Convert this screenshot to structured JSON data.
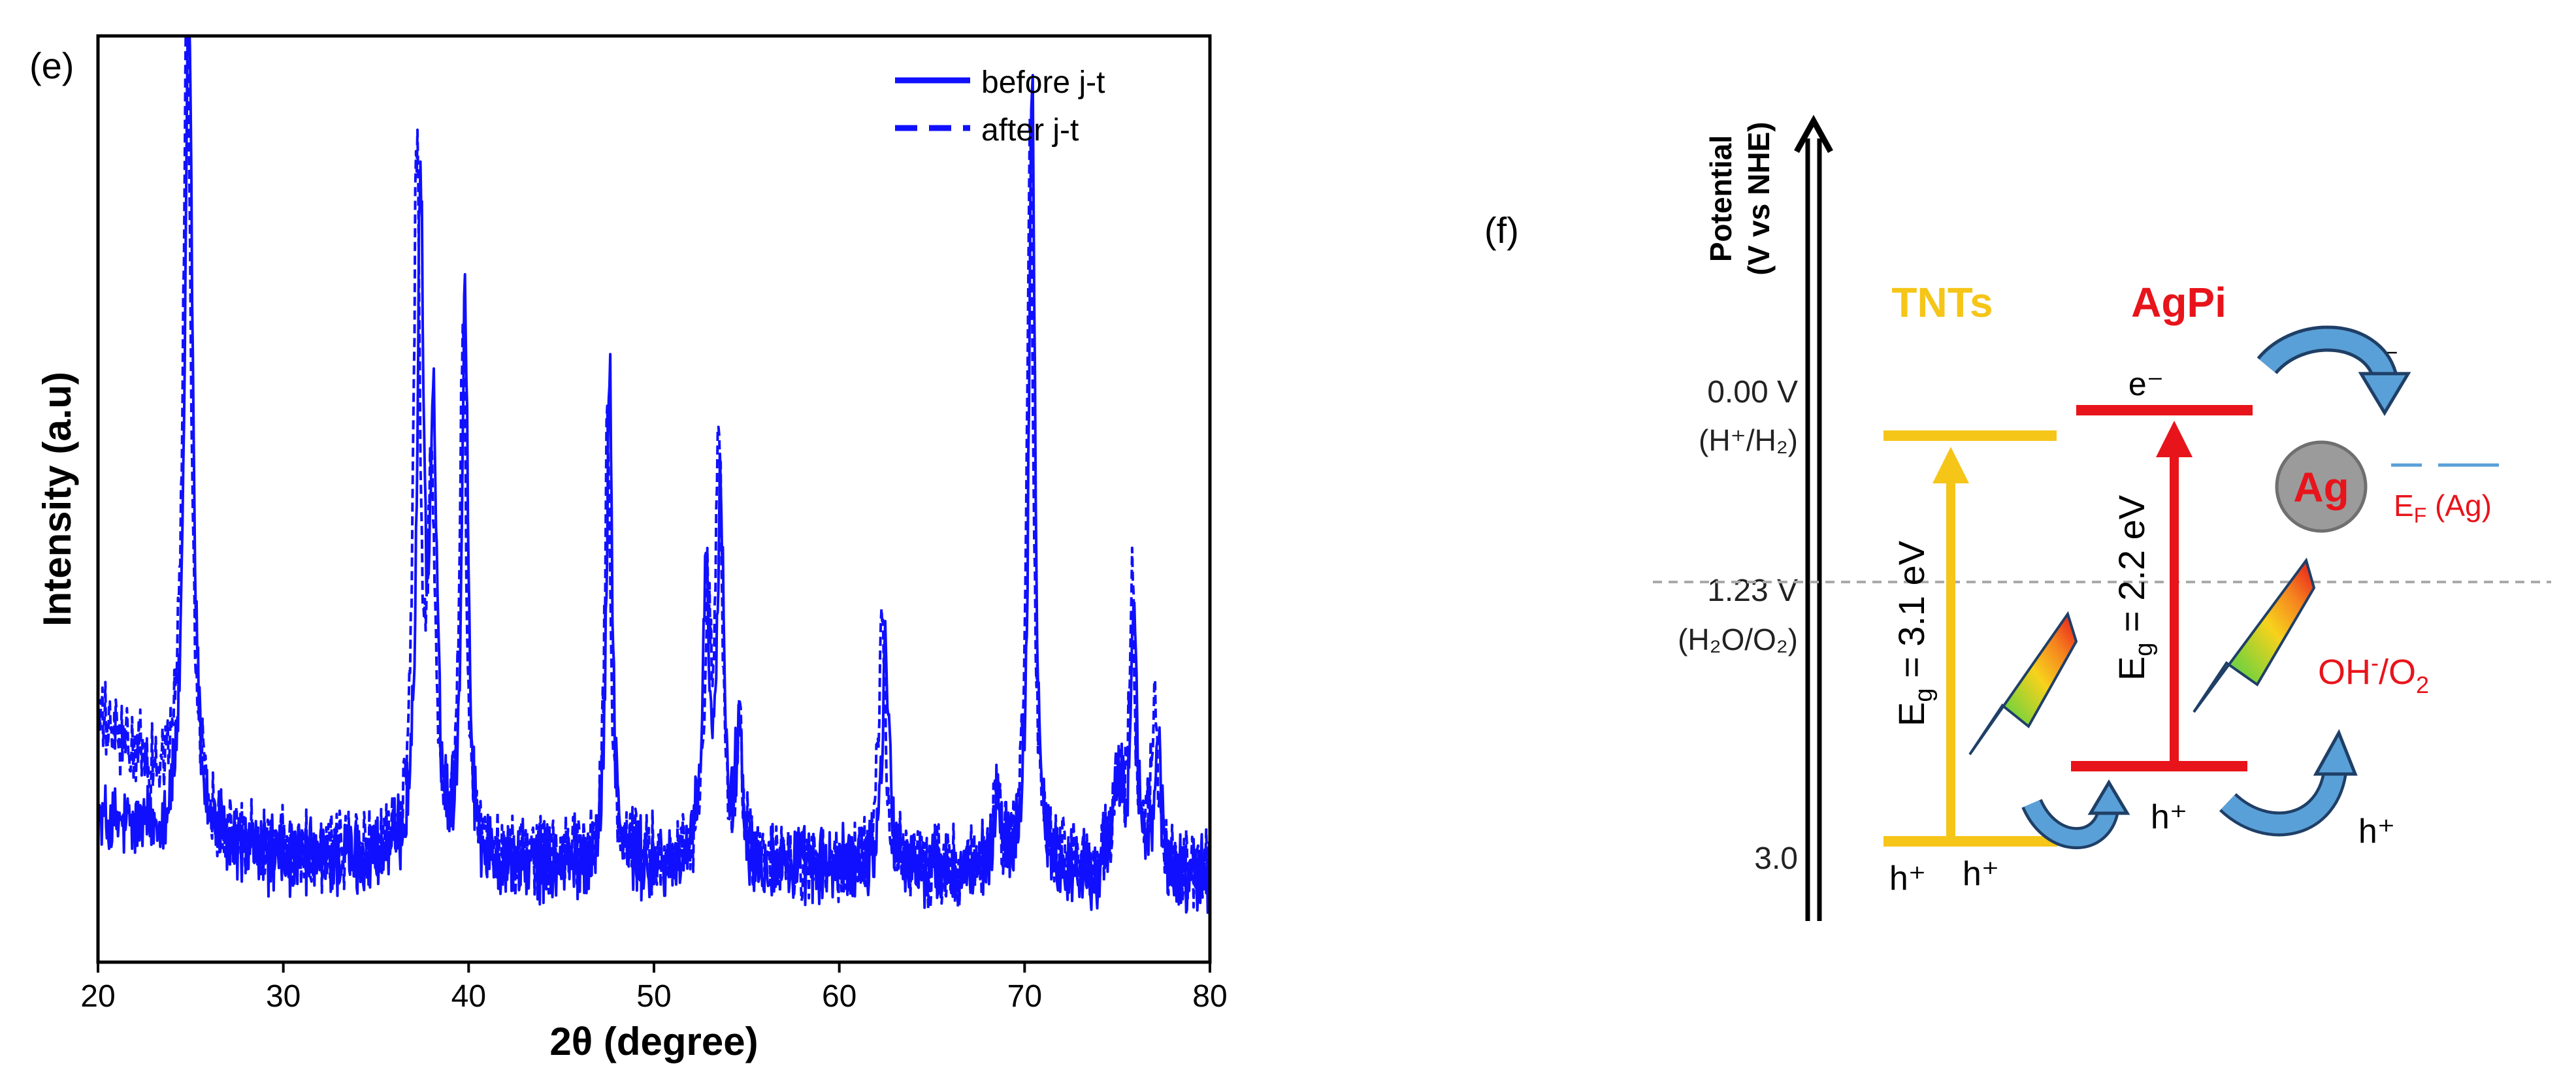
{
  "chart_data": {
    "type": "line",
    "panel_label": "(e)",
    "xlabel": "2θ (degree)",
    "ylabel": "Intensity (a.u)",
    "xlim": [
      20,
      80
    ],
    "ylim": [
      0,
      100
    ],
    "xticks": [
      "20",
      "30",
      "40",
      "50",
      "60",
      "70",
      "80"
    ],
    "line_color": "#1010ff",
    "legend": {
      "position": "top-right",
      "entries": [
        "before j-t",
        "after j-t"
      ]
    },
    "series": [
      {
        "name": "before j-t",
        "style": "solid",
        "baseline": [
          [
            20,
            15
          ],
          [
            22,
            14
          ],
          [
            24,
            13
          ],
          [
            26,
            12
          ],
          [
            30,
            11
          ],
          [
            40,
            10
          ],
          [
            50,
            10
          ],
          [
            60,
            10
          ],
          [
            70,
            9
          ],
          [
            80,
            9
          ]
        ],
        "peaks": [
          [
            24.9,
            92,
            0.25
          ],
          [
            37.4,
            70,
            0.22
          ],
          [
            38.1,
            45,
            0.22
          ],
          [
            39.8,
            62,
            0.2
          ],
          [
            47.6,
            55,
            0.18
          ],
          [
            52.8,
            30,
            0.22
          ],
          [
            53.6,
            40,
            0.2
          ],
          [
            54.6,
            15,
            0.2
          ],
          [
            62.5,
            25,
            0.22
          ],
          [
            68.6,
            8,
            0.25
          ],
          [
            70.4,
            86,
            0.2
          ],
          [
            75.1,
            10,
            0.3
          ],
          [
            75.9,
            30,
            0.18
          ],
          [
            77.2,
            14,
            0.2
          ]
        ]
      },
      {
        "name": "after j-t",
        "style": "dashed",
        "baseline": [
          [
            20,
            26
          ],
          [
            22,
            22
          ],
          [
            24,
            18
          ],
          [
            26,
            14
          ],
          [
            30,
            12
          ],
          [
            40,
            11
          ],
          [
            50,
            11
          ],
          [
            60,
            10
          ],
          [
            70,
            10
          ],
          [
            80,
            10
          ]
        ],
        "peaks": [
          [
            24.8,
            87,
            0.25
          ],
          [
            37.2,
            74,
            0.22
          ],
          [
            38.0,
            40,
            0.22
          ],
          [
            39.7,
            58,
            0.2
          ],
          [
            47.5,
            48,
            0.18
          ],
          [
            52.9,
            25,
            0.22
          ],
          [
            53.5,
            45,
            0.2
          ],
          [
            54.6,
            14,
            0.2
          ],
          [
            62.3,
            27,
            0.22
          ],
          [
            68.5,
            7,
            0.25
          ],
          [
            70.3,
            80,
            0.2
          ],
          [
            75.0,
            9,
            0.3
          ],
          [
            75.8,
            31,
            0.18
          ],
          [
            77.0,
            18,
            0.2
          ]
        ]
      }
    ]
  },
  "diagram": {
    "panel_label": "(f)",
    "axis_title_line1": "Potential",
    "axis_title_line2": "(V vs NHE)",
    "levels": [
      {
        "value": "0.00 V",
        "couple": "(H⁺/H₂)"
      },
      {
        "value": "1.23 V",
        "couple": "(H₂O/O₂)"
      },
      {
        "value": "3.0",
        "couple": ""
      }
    ],
    "tnts": {
      "name": "TNTs",
      "color": "#f5c518",
      "bandgap_prefix": "E",
      "bandgap_sub": "g",
      "bandgap_value": " = 3.1 eV",
      "holes": [
        "h⁺",
        "h⁺"
      ]
    },
    "agpi": {
      "name": "AgPi",
      "color": "#e8141b",
      "bandgap_prefix": "E",
      "bandgap_sub": "g",
      "bandgap_value": " = 2.2 eV",
      "electron": "e⁻",
      "hole": "h⁺"
    },
    "ag": {
      "label": "Ag",
      "fermi_prefix": "E",
      "fermi_sub": "F",
      "fermi_suffix": " (Ag)",
      "electron": "e⁻"
    },
    "oxidation": {
      "species": "OH",
      "superscript": "-",
      "separator": "/O",
      "subscript": "2"
    },
    "outer_hole": "h⁺"
  }
}
